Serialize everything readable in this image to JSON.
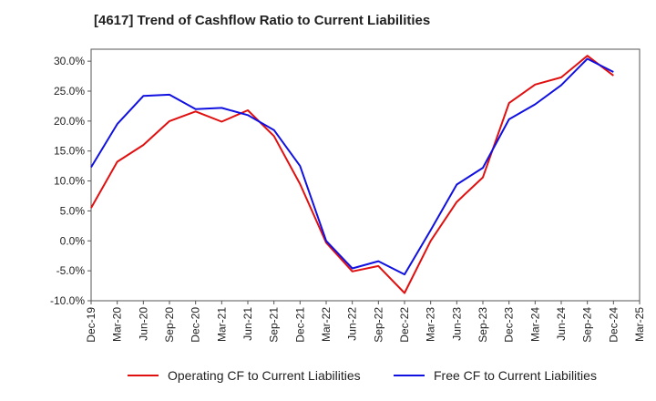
{
  "chart_data": {
    "type": "line",
    "title": "[4617]  Trend of Cashflow Ratio to Current Liabilities",
    "x": [
      "Dec-19",
      "Mar-20",
      "Jun-20",
      "Sep-20",
      "Dec-20",
      "Mar-21",
      "Jun-21",
      "Sep-21",
      "Dec-21",
      "Mar-22",
      "Jun-22",
      "Sep-22",
      "Dec-22",
      "Mar-23",
      "Jun-23",
      "Sep-23",
      "Dec-23",
      "Mar-24",
      "Jun-24",
      "Sep-24",
      "Dec-24",
      "Mar-25"
    ],
    "yticks": [
      30,
      25,
      20,
      15,
      10,
      5,
      0,
      -5,
      -10
    ],
    "ytick_labels": [
      "30.0%",
      "25.0%",
      "20.0%",
      "15.0%",
      "10.0%",
      "5.0%",
      "0.0%",
      "-5.0%",
      "-10.0%"
    ],
    "ylim": [
      -10,
      32
    ],
    "grid": true,
    "legend_position": "bottom",
    "series": [
      {
        "name": "Operating CF to Current Liabilities",
        "color": "#e01010",
        "values": [
          5.5,
          13.2,
          16.0,
          20.0,
          21.6,
          19.9,
          21.8,
          17.5,
          9.5,
          -0.3,
          -5.1,
          -4.2,
          -8.7,
          0.0,
          6.5,
          10.6,
          23.0,
          26.1,
          27.3,
          30.9,
          27.6,
          null
        ]
      },
      {
        "name": "Free CF to Current Liabilities",
        "color": "#1010e0",
        "values": [
          12.3,
          19.5,
          24.2,
          24.4,
          22.0,
          22.2,
          21.0,
          18.5,
          12.5,
          0.0,
          -4.6,
          -3.4,
          -5.6,
          1.8,
          9.4,
          12.2,
          20.3,
          22.8,
          26.0,
          30.4,
          28.2,
          null
        ]
      }
    ]
  }
}
